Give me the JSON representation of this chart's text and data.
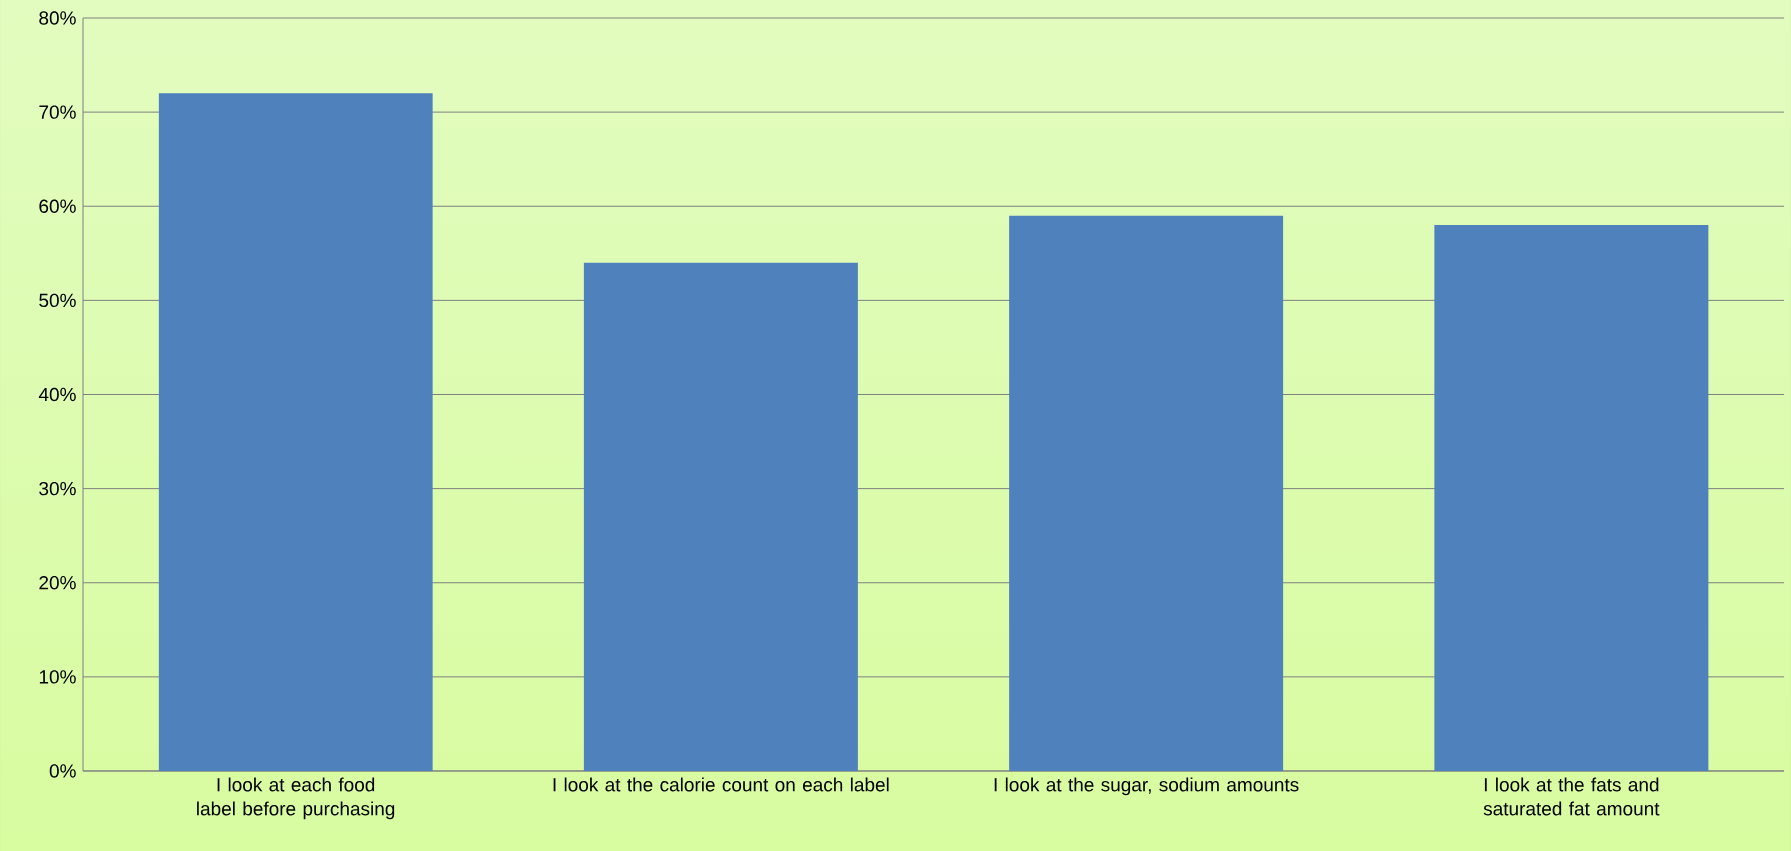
{
  "chart_data": {
    "type": "bar",
    "categories": [
      "I look at each food label before purchasing",
      "I look at the calorie count on each label",
      "I look at the sugar, sodium amounts",
      "I look at the fats and saturated fat amount"
    ],
    "values": [
      72,
      54,
      59,
      58
    ],
    "color": "#4f81bd",
    "ylim": [
      0,
      80
    ],
    "yticks": [
      {
        "value": 0,
        "label": "0%"
      },
      {
        "value": 10,
        "label": "10%"
      },
      {
        "value": 20,
        "label": "20%"
      },
      {
        "value": 30,
        "label": "30%"
      },
      {
        "value": 40,
        "label": "40%"
      },
      {
        "value": 50,
        "label": "50%"
      },
      {
        "value": 60,
        "label": "60%"
      },
      {
        "value": 70,
        "label": "70%"
      },
      {
        "value": 80,
        "label": "80%"
      }
    ],
    "grid": "y"
  }
}
